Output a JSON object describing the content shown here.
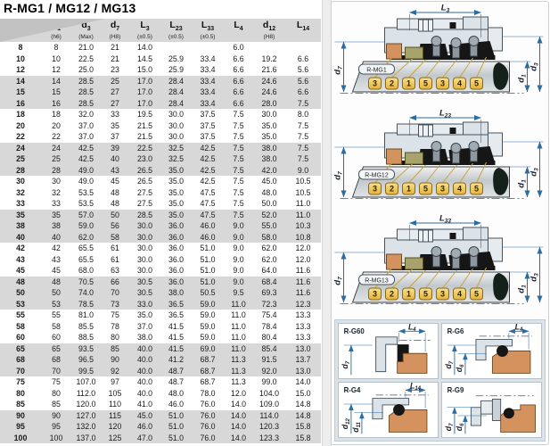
{
  "page": {
    "title": "R-MG1 / MG12 / MG13"
  },
  "table": {
    "header": [
      {
        "b": "",
        "s": "",
        "note": ""
      },
      {
        "b": "d",
        "s": "1",
        "note": "(h6)"
      },
      {
        "b": "d",
        "s": "3",
        "note": "(Max)"
      },
      {
        "b": "d",
        "s": "7",
        "note": "(H8)"
      },
      {
        "b": "L",
        "s": "3",
        "note": "(±0.5)"
      },
      {
        "b": "L",
        "s": "23",
        "note": "(±0.5)"
      },
      {
        "b": "L",
        "s": "33",
        "note": "(±0.5)"
      },
      {
        "b": "L",
        "s": "4",
        "note": ""
      },
      {
        "b": "d",
        "s": "12",
        "note": "(H8)"
      },
      {
        "b": "L",
        "s": "14",
        "note": ""
      }
    ],
    "rows": [
      [
        "8",
        "8",
        "21.0",
        "21",
        "14.0",
        "",
        "",
        "6.0",
        "",
        ""
      ],
      [
        "10",
        "10",
        "22.5",
        "21",
        "14.5",
        "25.9",
        "33.4",
        "6.6",
        "19.2",
        "6.6"
      ],
      [
        "12",
        "12",
        "25.0",
        "23",
        "15.0",
        "25.9",
        "33.4",
        "6.6",
        "21.6",
        "5.6"
      ],
      [
        "14",
        "14",
        "28.5",
        "25",
        "17.0",
        "28.4",
        "33.4",
        "6.6",
        "24.6",
        "5.6"
      ],
      [
        "15",
        "15",
        "28.5",
        "27",
        "17.0",
        "28.4",
        "33.4",
        "6.6",
        "24.6",
        "6.6"
      ],
      [
        "16",
        "16",
        "28.5",
        "27",
        "17.0",
        "28.4",
        "33.4",
        "6.6",
        "28.0",
        "7.5"
      ],
      [
        "18",
        "18",
        "32.0",
        "33",
        "19.5",
        "30.0",
        "37.5",
        "7.5",
        "30.0",
        "8.0"
      ],
      [
        "20",
        "20",
        "37.0",
        "35",
        "21.5",
        "30.0",
        "37.5",
        "7.5",
        "35.0",
        "7.5"
      ],
      [
        "22",
        "22",
        "37.0",
        "37",
        "21.5",
        "30.0",
        "37.5",
        "7.5",
        "35.0",
        "7.5"
      ],
      [
        "24",
        "24",
        "42.5",
        "39",
        "22.5",
        "32.5",
        "42.5",
        "7.5",
        "38.0",
        "7.5"
      ],
      [
        "25",
        "25",
        "42.5",
        "40",
        "23.0",
        "32.5",
        "42.5",
        "7.5",
        "38.0",
        "7.5"
      ],
      [
        "28",
        "28",
        "49.0",
        "43",
        "26.5",
        "35.0",
        "42.5",
        "7.5",
        "42.0",
        "9.0"
      ],
      [
        "30",
        "30",
        "49.0",
        "45",
        "26.5",
        "35.0",
        "42.5",
        "7.5",
        "45.0",
        "10.5"
      ],
      [
        "32",
        "32",
        "53.5",
        "48",
        "27.5",
        "35.0",
        "47.5",
        "7.5",
        "48.0",
        "10.5"
      ],
      [
        "33",
        "33",
        "53.5",
        "48",
        "27.5",
        "35.0",
        "47.5",
        "7.5",
        "50.0",
        "11.0"
      ],
      [
        "35",
        "35",
        "57.0",
        "50",
        "28.5",
        "35.0",
        "47.5",
        "7.5",
        "52.0",
        "11.0"
      ],
      [
        "38",
        "38",
        "59.0",
        "56",
        "30.0",
        "36.0",
        "46.0",
        "9.0",
        "55.0",
        "10.3"
      ],
      [
        "40",
        "40",
        "62.0",
        "58",
        "30.0",
        "36.0",
        "46.0",
        "9.0",
        "58.0",
        "10.8"
      ],
      [
        "42",
        "42",
        "65.5",
        "61",
        "30.0",
        "36.0",
        "51.0",
        "9.0",
        "62.0",
        "12.0"
      ],
      [
        "43",
        "43",
        "65.5",
        "61",
        "30.0",
        "36.0",
        "51.0",
        "9.0",
        "62.0",
        "12.0"
      ],
      [
        "45",
        "45",
        "68.0",
        "63",
        "30.0",
        "36.0",
        "51.0",
        "9.0",
        "64.0",
        "11.6"
      ],
      [
        "48",
        "48",
        "70.5",
        "66",
        "30.5",
        "36.0",
        "51.0",
        "9.0",
        "68.4",
        "11.6"
      ],
      [
        "50",
        "50",
        "74.0",
        "70",
        "30.5",
        "38.0",
        "50.5",
        "9.5",
        "69.3",
        "11.6"
      ],
      [
        "53",
        "53",
        "78.5",
        "73",
        "33.0",
        "36.5",
        "59.0",
        "11.0",
        "72.3",
        "12.3"
      ],
      [
        "55",
        "55",
        "81.0",
        "75",
        "35.0",
        "36.5",
        "59.0",
        "11.0",
        "75.4",
        "13.3"
      ],
      [
        "58",
        "58",
        "85.5",
        "78",
        "37.0",
        "41.5",
        "59.0",
        "11.0",
        "78.4",
        "13.3"
      ],
      [
        "60",
        "60",
        "88.5",
        "80",
        "38.0",
        "41.5",
        "59.0",
        "11.0",
        "80.4",
        "13.3"
      ],
      [
        "65",
        "65",
        "93.5",
        "85",
        "40.0",
        "41.5",
        "69.0",
        "11.0",
        "85.4",
        "13.0"
      ],
      [
        "68",
        "68",
        "96.5",
        "90",
        "40.0",
        "41.2",
        "68.7",
        "11.3",
        "91.5",
        "13.7"
      ],
      [
        "70",
        "70",
        "99.5",
        "92",
        "40.0",
        "48.7",
        "68.7",
        "11.3",
        "92.0",
        "13.0"
      ],
      [
        "75",
        "75",
        "107.0",
        "97",
        "40.0",
        "48.7",
        "68.7",
        "11.3",
        "99.0",
        "14.0"
      ],
      [
        "80",
        "80",
        "112.0",
        "105",
        "40.0",
        "48.0",
        "78.0",
        "12.0",
        "104.0",
        "15.0"
      ],
      [
        "85",
        "85",
        "120.0",
        "110",
        "41.0",
        "46.0",
        "76.0",
        "14.0",
        "109.0",
        "14.8"
      ],
      [
        "90",
        "90",
        "127.0",
        "115",
        "45.0",
        "51.0",
        "76.0",
        "14.0",
        "114.0",
        "14.8"
      ],
      [
        "95",
        "95",
        "132.0",
        "120",
        "46.0",
        "51.0",
        "76.0",
        "14.0",
        "120.3",
        "15.8"
      ],
      [
        "100",
        "100",
        "137.0",
        "125",
        "47.0",
        "51.0",
        "76.0",
        "14.0",
        "123.3",
        "15.8"
      ]
    ]
  },
  "diagrams": {
    "tag_numbers": [
      "3",
      "2",
      "1",
      "5",
      "3",
      "4",
      "5"
    ],
    "main": [
      {
        "name": "R-MG1",
        "top_dim": {
          "b": "L",
          "s": "3"
        }
      },
      {
        "name": "R-MG12",
        "top_dim": {
          "b": "L",
          "s": "23"
        }
      },
      {
        "name": "R-MG13",
        "top_dim": {
          "b": "L",
          "s": "33"
        }
      }
    ],
    "main_left_dim": {
      "b": "d",
      "s": "7"
    },
    "main_right_dims": [
      {
        "b": "d",
        "s": "1"
      },
      {
        "b": "d",
        "s": "3"
      }
    ],
    "small": [
      {
        "name": "R-G60",
        "top_dim": {
          "b": "L",
          "s": "4"
        },
        "left_dims": [
          {
            "b": "d",
            "s": "7"
          }
        ]
      },
      {
        "name": "R-G6",
        "top_dim": {
          "b": "L",
          "s": "4"
        },
        "left_dims": [
          {
            "b": "d",
            "s": "7"
          },
          {
            "b": "d",
            "s": "6"
          }
        ]
      },
      {
        "name": "R-G4",
        "top_dim": {
          "b": "L",
          "s": "14"
        },
        "left_dims": [
          {
            "b": "d",
            "s": "12"
          },
          {
            "b": "d",
            "s": "11"
          }
        ]
      },
      {
        "name": "R-G9",
        "top_dim": null,
        "left_dims": [
          {
            "b": "d",
            "s": "7"
          },
          {
            "b": "d",
            "s": "6"
          }
        ]
      }
    ]
  },
  "colors": {
    "dim_blue": "#2b6ca3",
    "metal_gray": "#dbe2e8",
    "metal_light": "#e6ebf0",
    "seat_orange": "#d4935e",
    "ring_olive": "#a8a36c",
    "rubber_black": "#161616",
    "tag_gold_light": "#f8e08e",
    "tag_gold_dark": "#e6b33a",
    "leader_gold": "#c9a33f",
    "shaft_tip_dark": "#14201a",
    "row_stripe": "#d8d8d8",
    "header_gray": "#d7d7d7"
  }
}
